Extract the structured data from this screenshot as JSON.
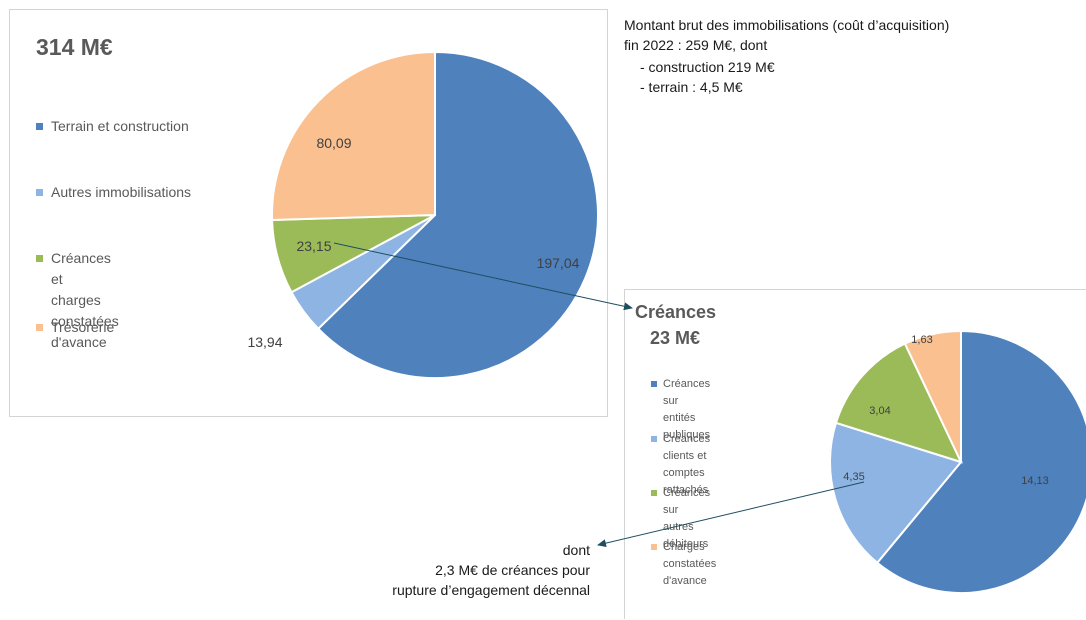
{
  "chart_data": [
    {
      "type": "pie",
      "title": "314 M€",
      "series": [
        {
          "name": "Terrain et construction",
          "value": 197.04,
          "label": "197,04",
          "color": "#4f81bd"
        },
        {
          "name": "Autres immobilisations",
          "value": 13.94,
          "label": "13,94",
          "color": "#8eb4e3"
        },
        {
          "name": "Créances et\ncharges constatées\nd'avance",
          "value": 23.15,
          "label": "23,15",
          "color": "#9bbb59"
        },
        {
          "name": "Trésorerie",
          "value": 80.09,
          "label": "80,09",
          "color": "#fac090"
        }
      ],
      "legend_position": "left"
    },
    {
      "type": "pie",
      "title": "Créances",
      "subtitle": "23 M€",
      "series": [
        {
          "name": "Créances sur entités\npubliques",
          "value": 14.13,
          "label": "14,13",
          "color": "#4f81bd"
        },
        {
          "name": "Créances clients et\ncomptes rattachés",
          "value": 4.35,
          "label": "4,35",
          "color": "#8eb4e3"
        },
        {
          "name": "Créances sur autres\ndébiteurs",
          "value": 3.04,
          "label": "3,04",
          "color": "#9bbb59"
        },
        {
          "name": "Charges constatées\nd'avance",
          "value": 1.63,
          "label": "1,63",
          "color": "#fac090"
        }
      ],
      "legend_position": "left"
    }
  ],
  "annotations": {
    "top_note": {
      "line1": "Montant brut des immobilisations (coût d’acquisition)",
      "line2": "fin 2022 : 259 M€, dont",
      "item1": "- construction 219 M€",
      "item2": "- terrain : 4,5 M€"
    },
    "bottom_note": {
      "line1": "dont",
      "line2": "2,3 M€ de créances pour",
      "line3": "rupture d’engagement décennal"
    }
  }
}
